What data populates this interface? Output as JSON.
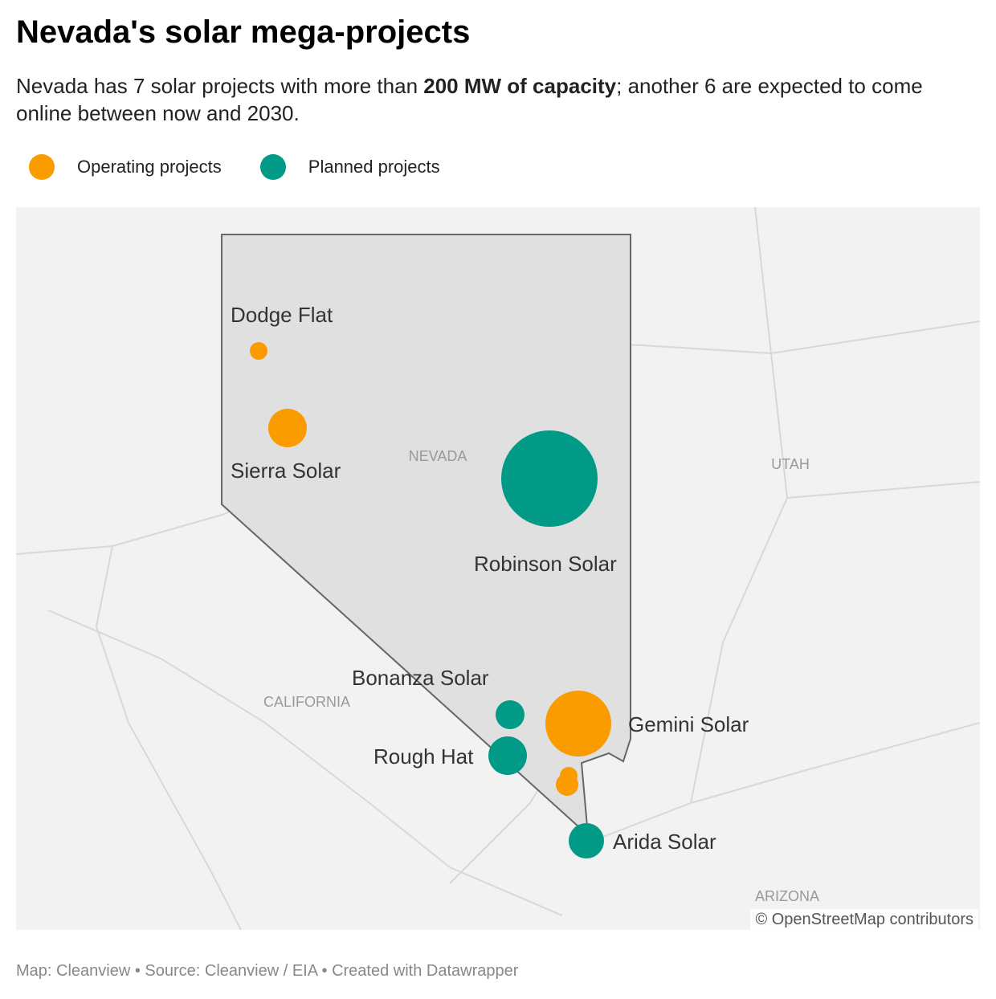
{
  "header": {
    "title": "Nevada's solar mega-projects",
    "subtitle": {
      "before": "Nevada has 7 solar projects with more than ",
      "bold": "200 MW of capacity",
      "after": "; another 6 are expected to come online between now and 2030."
    }
  },
  "legend": [
    {
      "label": "Operating projects",
      "color": "#fa9b00"
    },
    {
      "label": "Planned projects",
      "color": "#009a86"
    }
  ],
  "map": {
    "regions": [
      "NEVADA",
      "UTAH",
      "CALIFORNIA",
      "ARIZONA"
    ],
    "projects": [
      "Dodge Flat",
      "Sierra Solar",
      "Robinson Solar",
      "Bonanza Solar",
      "Rough Hat",
      "Gemini Solar",
      "Arida Solar"
    ],
    "attribution": "© OpenStreetMap contributors"
  },
  "footer": "Map: Cleanview • Source: Cleanview / EIA • Created with Datawrapper"
}
